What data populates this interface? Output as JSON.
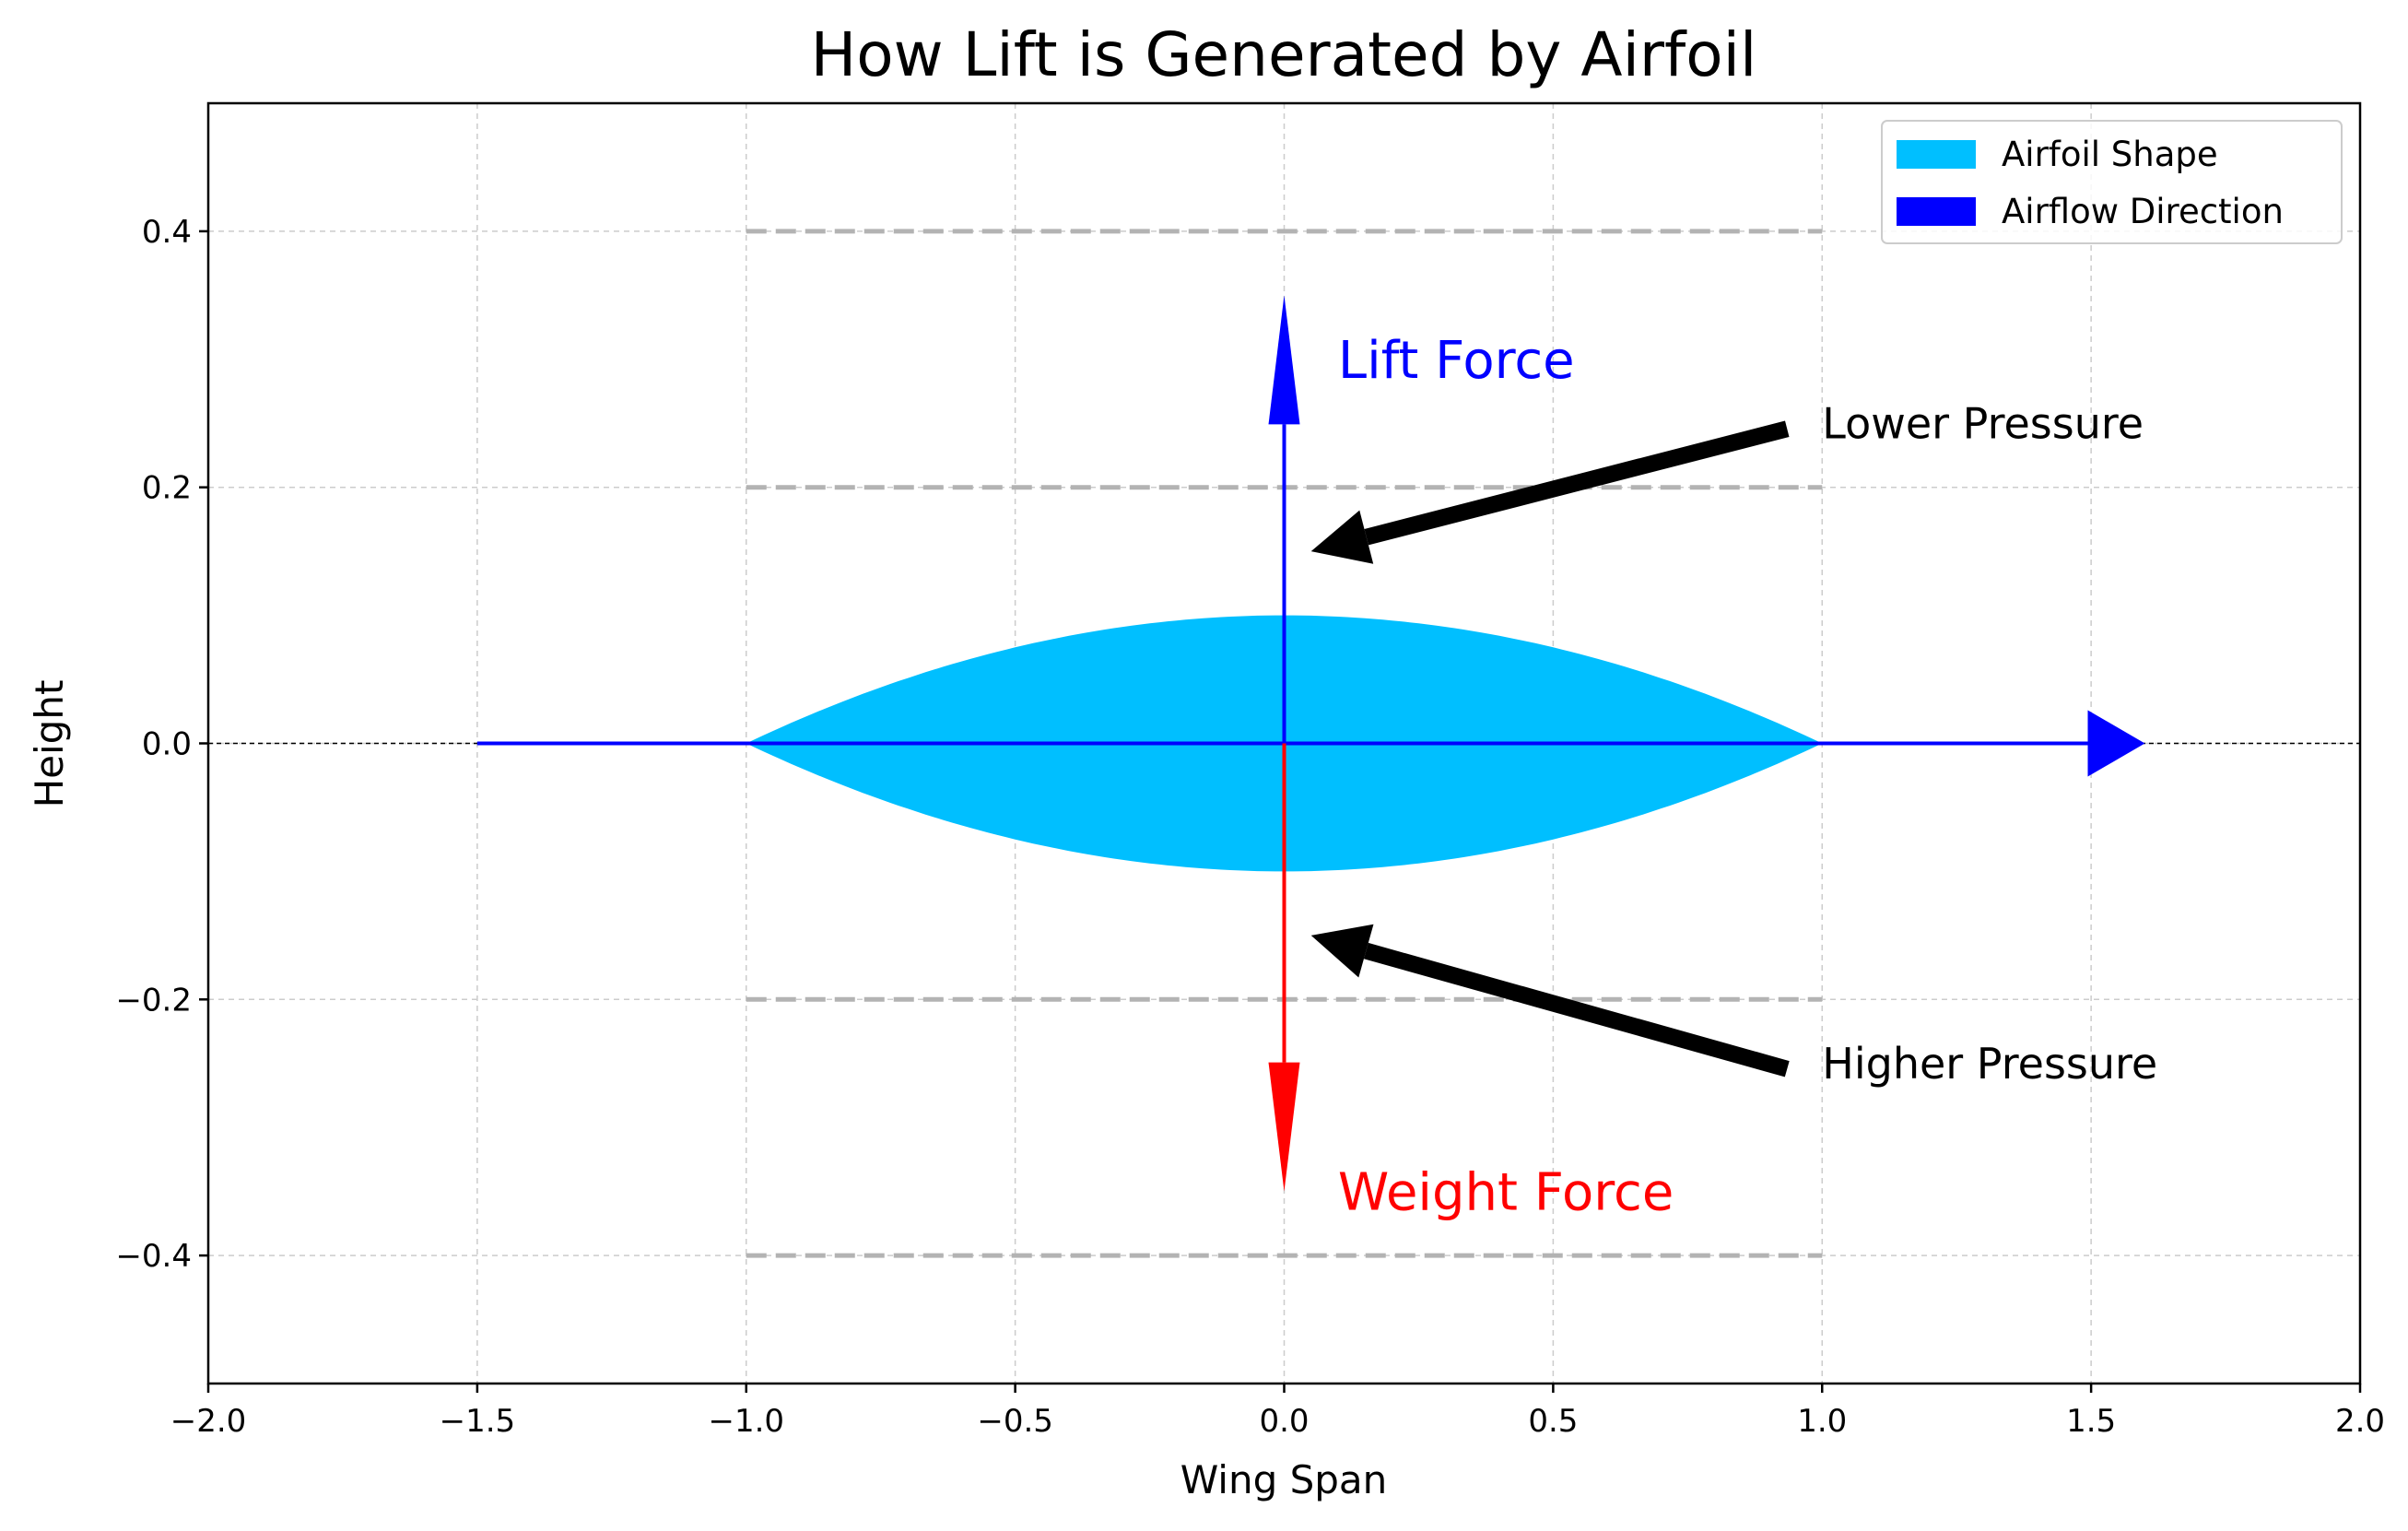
{
  "chart_data": {
    "type": "area",
    "title": "How Lift is Generated by Airfoil",
    "xlabel": "Wing Span",
    "ylabel": "Height",
    "xlim": [
      -2.0,
      2.0
    ],
    "ylim": [
      -0.5,
      0.5
    ],
    "xticks": [
      -2.0,
      -1.5,
      -1.0,
      -0.5,
      0.0,
      0.5,
      1.0,
      1.5,
      2.0
    ],
    "yticks": [
      -0.4,
      -0.2,
      0.0,
      0.2,
      0.4
    ],
    "xtick_labels": [
      "−2.0",
      "−1.5",
      "−1.0",
      "−0.5",
      "0.0",
      "0.5",
      "1.0",
      "1.5",
      "2.0"
    ],
    "ytick_labels": [
      "−0.4",
      "−0.2",
      "0.0",
      "0.2",
      "0.4"
    ],
    "grid": true,
    "legend_position": "top-right",
    "legend": [
      {
        "label": "Airfoil Shape",
        "color": "#00bfff"
      },
      {
        "label": "Airflow Direction",
        "color": "#0000ff"
      }
    ],
    "airfoil": {
      "x_range": [
        -1.0,
        1.0
      ],
      "upper_peak": 0.1,
      "lower_peak": -0.1,
      "color": "#00bfff"
    },
    "streamlines": {
      "y_values": [
        -0.4,
        -0.2,
        0.2,
        0.4
      ],
      "x_range": [
        -1.0,
        1.0
      ],
      "color": "#b3b3b3"
    },
    "airflow_arrow": {
      "x_start": -1.5,
      "x_end": 1.6,
      "y": 0.0,
      "color": "#0000ff"
    },
    "forces": [
      {
        "name": "lift",
        "label": "Lift Force",
        "x": 0.0,
        "y_start": 0.0,
        "y_end": 0.35,
        "color": "#0000ff",
        "label_x": 0.1,
        "label_y": 0.3
      },
      {
        "name": "weight",
        "label": "Weight Force",
        "x": 0.0,
        "y_start": 0.0,
        "y_end": -0.35,
        "color": "#ff0000",
        "label_x": 0.1,
        "label_y": -0.35
      }
    ],
    "annotations": [
      {
        "name": "lower-pressure",
        "text": "Lower Pressure",
        "text_x": 1.0,
        "text_y": 0.25,
        "arrow_to_x": 0.05,
        "arrow_to_y": 0.15,
        "color": "#000000"
      },
      {
        "name": "higher-pressure",
        "text": "Higher Pressure",
        "text_x": 1.0,
        "text_y": -0.25,
        "arrow_to_x": 0.05,
        "arrow_to_y": -0.15,
        "color": "#000000"
      }
    ]
  }
}
